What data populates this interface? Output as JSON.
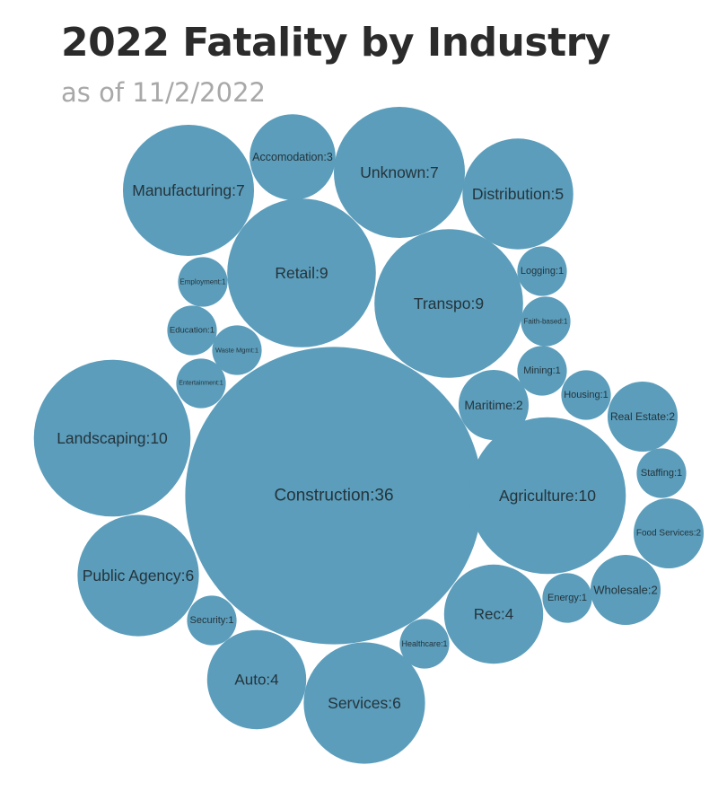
{
  "chart_data": {
    "type": "bubble",
    "title": "2022 Fatality by Industry",
    "subtitle": "as of 11/2/2022",
    "bubble_color": "#5b9dbb",
    "label_color": "#24343c",
    "items": [
      {
        "label": "Construction:36",
        "category": "Construction",
        "value": 36
      },
      {
        "label": "Landscaping:10",
        "category": "Landscaping",
        "value": 10
      },
      {
        "label": "Agriculture:10",
        "category": "Agriculture",
        "value": 10
      },
      {
        "label": "Retail:9",
        "category": "Retail",
        "value": 9
      },
      {
        "label": "Transpo:9",
        "category": "Transpo",
        "value": 9
      },
      {
        "label": "Manufacturing:7",
        "category": "Manufacturing",
        "value": 7
      },
      {
        "label": "Unknown:7",
        "category": "Unknown",
        "value": 7
      },
      {
        "label": "Public Agency:6",
        "category": "Public Agency",
        "value": 6
      },
      {
        "label": "Services:6",
        "category": "Services",
        "value": 6
      },
      {
        "label": "Distribution:5",
        "category": "Distribution",
        "value": 5
      },
      {
        "label": "Rec:4",
        "category": "Rec",
        "value": 4
      },
      {
        "label": "Auto:4",
        "category": "Auto",
        "value": 4
      },
      {
        "label": "Accomodation:3",
        "category": "Accomodation",
        "value": 3
      },
      {
        "label": "Maritime:2",
        "category": "Maritime",
        "value": 2
      },
      {
        "label": "Real Estate:2",
        "category": "Real Estate",
        "value": 2
      },
      {
        "label": "Food Services:2",
        "category": "Food Services",
        "value": 2
      },
      {
        "label": "Wholesale:2",
        "category": "Wholesale",
        "value": 2
      },
      {
        "label": "Logging:1",
        "category": "Logging",
        "value": 1
      },
      {
        "label": "Faith-based:1",
        "category": "Faith-based",
        "value": 1
      },
      {
        "label": "Mining:1",
        "category": "Mining",
        "value": 1
      },
      {
        "label": "Housing:1",
        "category": "Housing",
        "value": 1
      },
      {
        "label": "Staffing:1",
        "category": "Staffing",
        "value": 1
      },
      {
        "label": "Energy:1",
        "category": "Energy",
        "value": 1
      },
      {
        "label": "Healthcare:1",
        "category": "Healthcare",
        "value": 1
      },
      {
        "label": "Security:1",
        "category": "Security",
        "value": 1
      },
      {
        "label": "Employment:1",
        "category": "Employment",
        "value": 1
      },
      {
        "label": "Education:1",
        "category": "Education",
        "value": 1
      },
      {
        "label": "Waste Mgmt:1",
        "category": "Waste Mgmt",
        "value": 1
      },
      {
        "label": "Entertainment:1",
        "category": "Entertainment",
        "value": 1
      }
    ]
  }
}
